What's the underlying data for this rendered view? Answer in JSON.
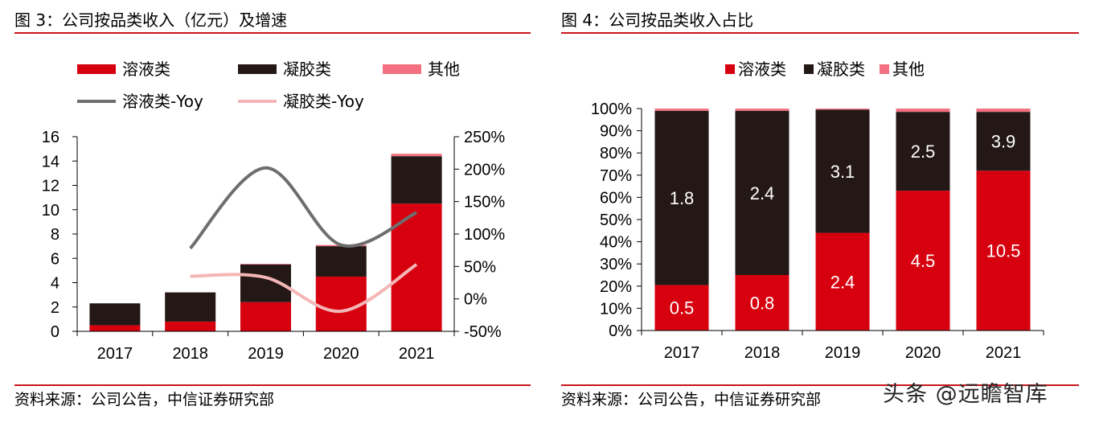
{
  "left": {
    "title": "图 3：公司按品类收入（亿元）及增速",
    "source": "资料来源：公司公告，中信证券研究部"
  },
  "right": {
    "title": "图 4：公司按品类收入占比",
    "source": "资料来源：公司公告，中信证券研究部"
  },
  "watermark": "头条 @远瞻智库",
  "colors": {
    "solution": "#d7000f",
    "gel": "#231815",
    "other": "#f2707f",
    "solution_yoy": "#6e6e6e",
    "gel_yoy": "#f4b6b6",
    "rule": "#c8161d"
  },
  "chart_data": [
    {
      "type": "bar",
      "stacked": true,
      "title": "",
      "categories": [
        "2017",
        "2018",
        "2019",
        "2020",
        "2021"
      ],
      "series": [
        {
          "name": "溶液类",
          "values": [
            0.5,
            0.8,
            2.4,
            4.5,
            10.5
          ]
        },
        {
          "name": "凝胶类",
          "values": [
            1.8,
            2.4,
            3.1,
            2.5,
            3.9
          ]
        },
        {
          "name": "其他",
          "values": [
            0.0,
            0.0,
            0.05,
            0.1,
            0.2
          ]
        }
      ],
      "line_series": [
        {
          "name": "溶液类-Yoy",
          "axis": "right",
          "values": [
            null,
            0.78,
            2.02,
            0.83,
            1.33
          ]
        },
        {
          "name": "凝胶类-Yoy",
          "axis": "right",
          "values": [
            null,
            0.35,
            0.33,
            -0.19,
            0.53
          ]
        }
      ],
      "ylim": [
        0,
        16
      ],
      "yticks": [
        "0",
        "2",
        "4",
        "6",
        "8",
        "10",
        "12",
        "14",
        "16"
      ],
      "y2lim": [
        -0.5,
        2.5
      ],
      "y2ticks": [
        "-50%",
        "0%",
        "50%",
        "100%",
        "150%",
        "200%",
        "250%"
      ],
      "legend_position": "top",
      "grid": false
    },
    {
      "type": "bar",
      "stacked": true,
      "percent": true,
      "title": "",
      "categories": [
        "2017",
        "2018",
        "2019",
        "2020",
        "2021"
      ],
      "series": [
        {
          "name": "溶液类",
          "share": [
            0.205,
            0.25,
            0.44,
            0.63,
            0.72
          ],
          "labels": [
            "0.5",
            "0.8",
            "2.4",
            "4.5",
            "10.5"
          ]
        },
        {
          "name": "凝胶类",
          "share": [
            0.785,
            0.74,
            0.555,
            0.355,
            0.265
          ],
          "labels": [
            "1.8",
            "2.4",
            "3.1",
            "2.5",
            "3.9"
          ]
        },
        {
          "name": "其他",
          "share": [
            0.01,
            0.01,
            0.005,
            0.015,
            0.015
          ],
          "labels": [
            "",
            "",
            "",
            "",
            ""
          ]
        }
      ],
      "ylim": [
        0,
        1
      ],
      "yticks": [
        "0%",
        "10%",
        "20%",
        "30%",
        "40%",
        "50%",
        "60%",
        "70%",
        "80%",
        "90%",
        "100%"
      ],
      "legend_position": "top",
      "grid": false
    }
  ]
}
